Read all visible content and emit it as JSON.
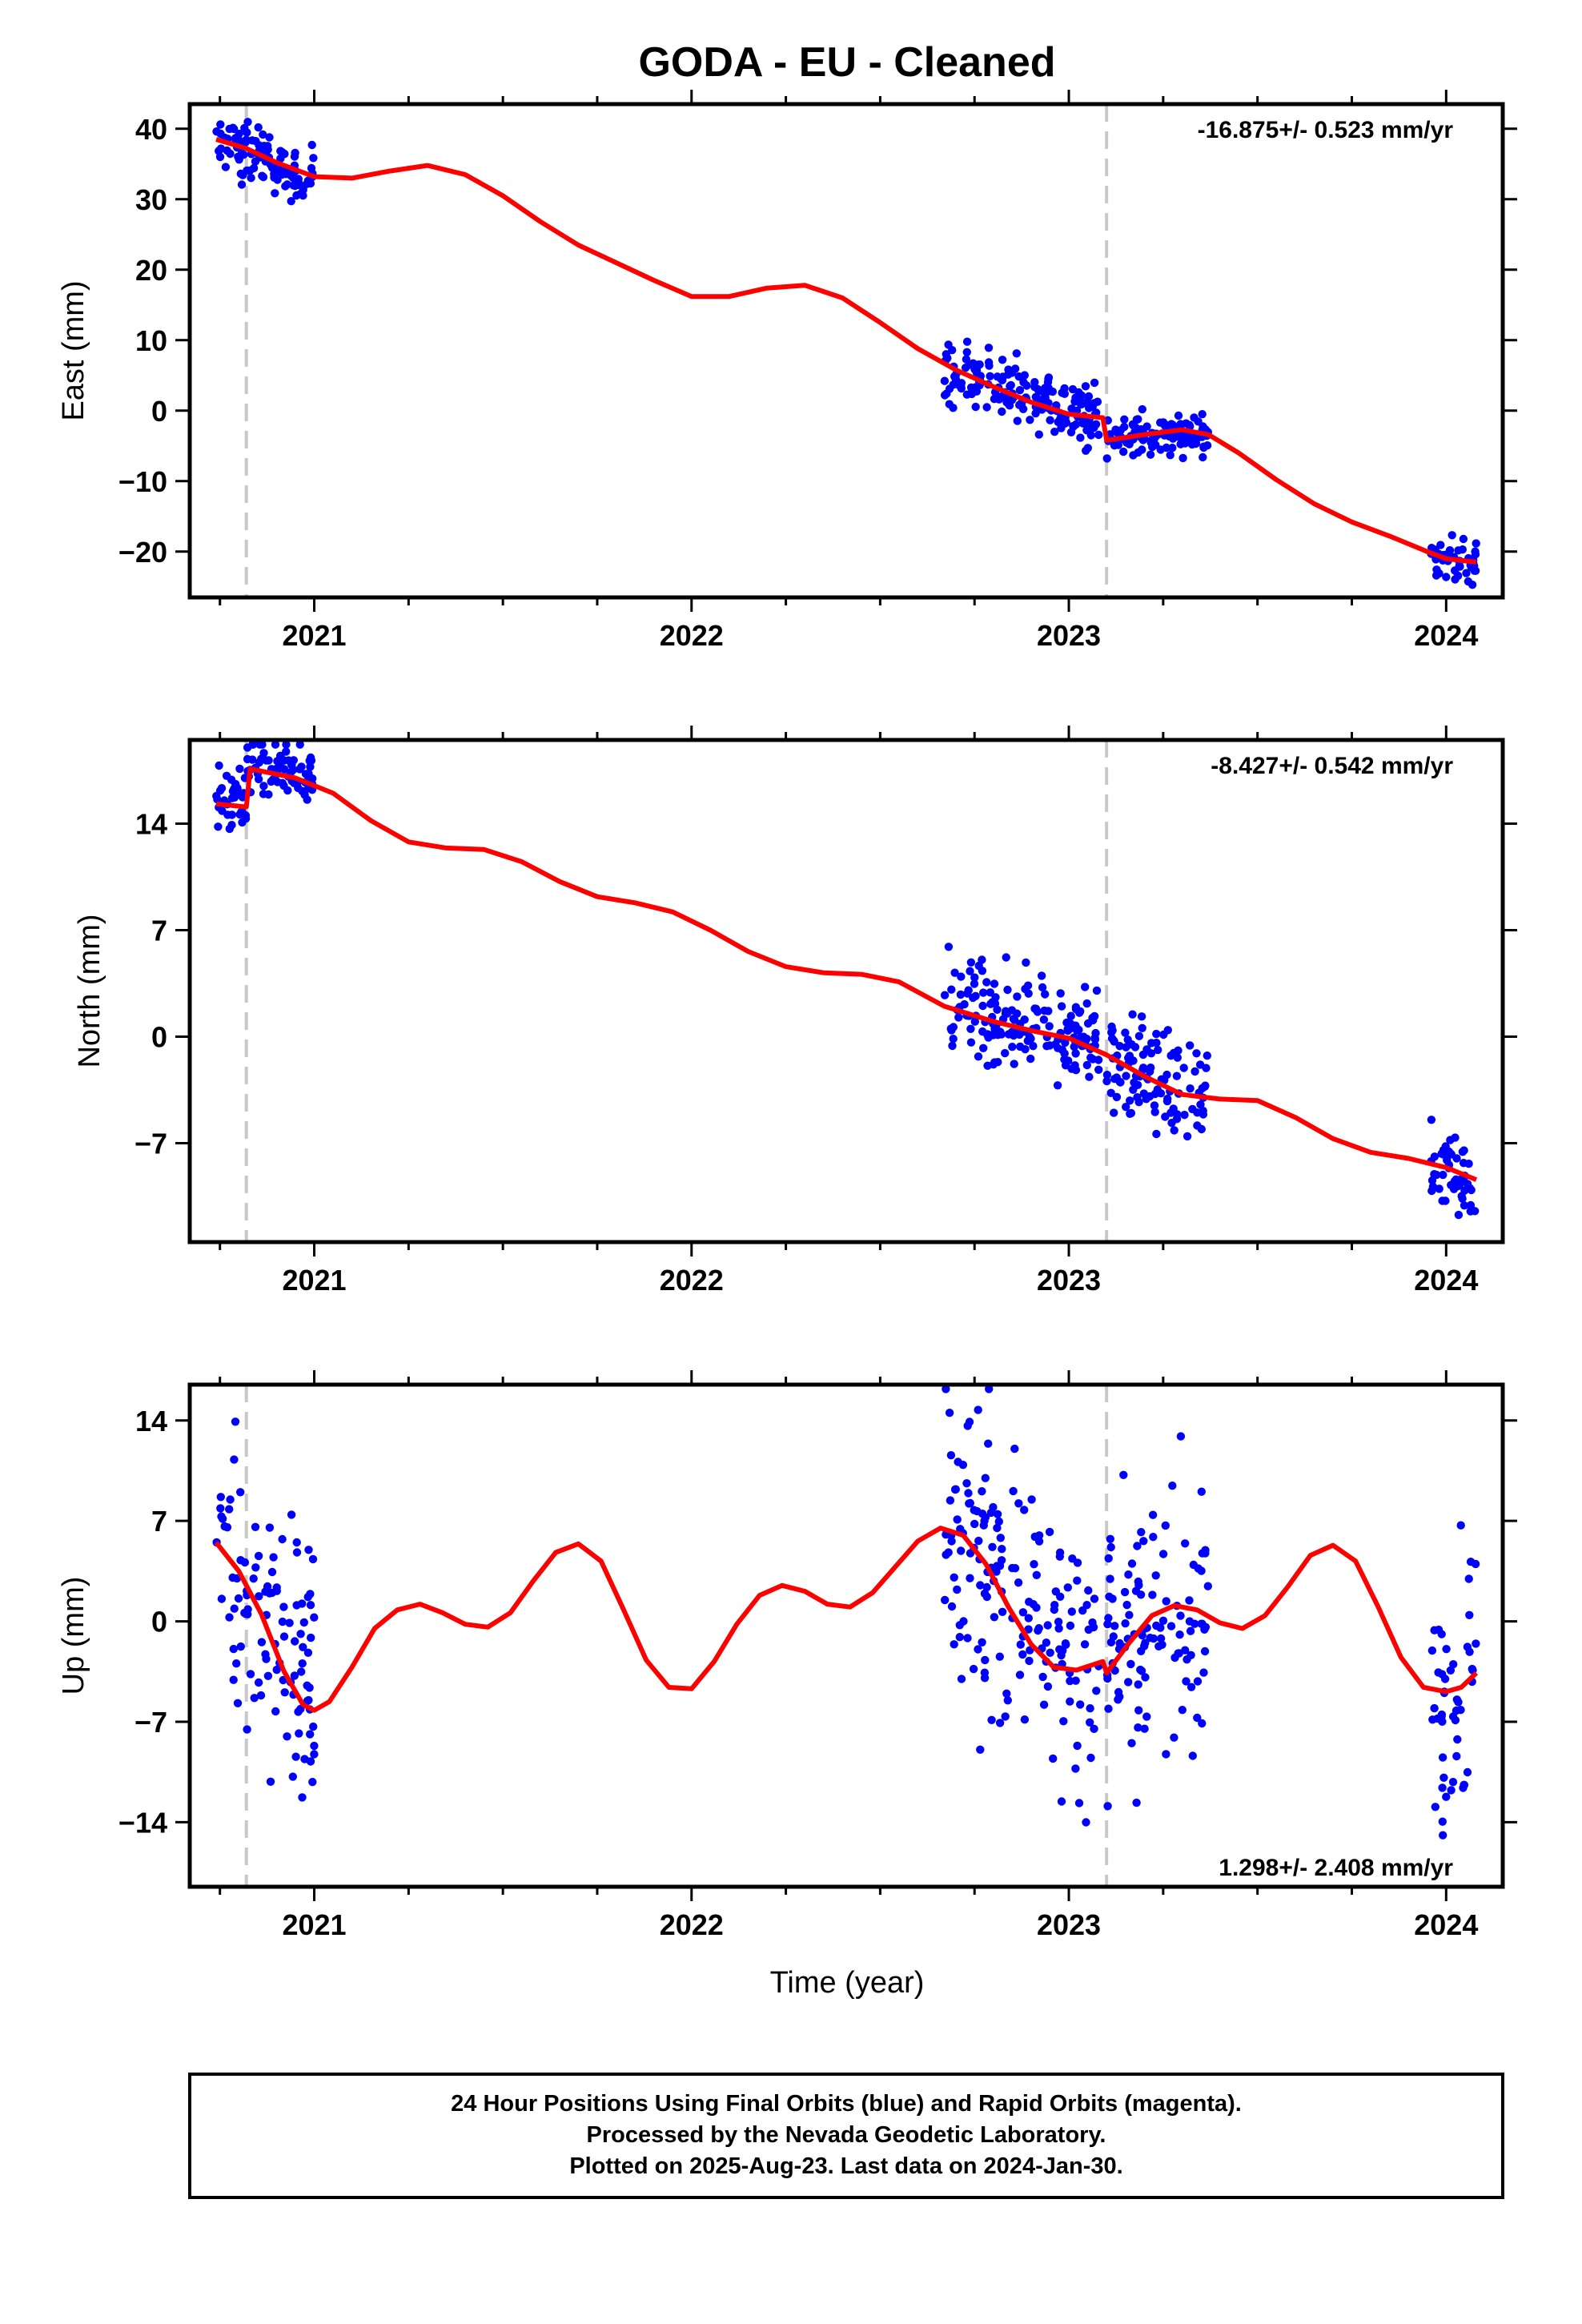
{
  "title": "GODA  - EU - Cleaned",
  "xlabel": "Time (year)",
  "footer": {
    "line1": "24 Hour Positions Using Final Orbits (blue) and Rapid Orbits (magenta).",
    "line2": "Processed by the Nevada Geodetic Laboratory.",
    "line3": "Plotted on 2025-Aug-23. Last data on 2024-Jan-30."
  },
  "colors": {
    "data": "#0000ff",
    "model": "#ff0000",
    "break_line": "#c8c8c8",
    "frame": "#000000"
  },
  "chart_data": [
    {
      "type": "scatter",
      "panel": "east",
      "ylabel": "East (mm)",
      "rate_text": "-16.875+/- 0.523 mm/yr",
      "xlim": [
        2020.67,
        2024.15
      ],
      "ylim": [
        -26.5,
        43.5
      ],
      "yticks": [
        40,
        30,
        20,
        10,
        0,
        -10,
        -20
      ],
      "xticks": [
        2021,
        2022,
        2023,
        2024
      ],
      "breaks": [
        2020.82,
        2023.1
      ],
      "data_clusters": [
        {
          "x_range": [
            2020.74,
            2021.0
          ],
          "y_center": [
            38,
            33
          ],
          "spread": 2.0
        },
        {
          "x_range": [
            2022.67,
            2023.08
          ],
          "y_center": [
            6,
            -1
          ],
          "spread": 2.3
        },
        {
          "x_range": [
            2023.1,
            2023.37
          ],
          "y_center": [
            -3.8,
            -3
          ],
          "spread": 1.4
        },
        {
          "x_range": [
            2023.96,
            2024.08
          ],
          "y_center": [
            -21,
            -21.5
          ],
          "spread": 1.6
        }
      ],
      "model_curve": [
        [
          2020.74,
          38.5
        ],
        [
          2020.82,
          37.2
        ],
        [
          2020.9,
          35.2
        ],
        [
          2021.0,
          33.2
        ],
        [
          2021.1,
          33.0
        ],
        [
          2021.2,
          34.0
        ],
        [
          2021.3,
          34.8
        ],
        [
          2021.4,
          33.5
        ],
        [
          2021.5,
          30.5
        ],
        [
          2021.6,
          26.8
        ],
        [
          2021.7,
          23.5
        ],
        [
          2021.8,
          21.0
        ],
        [
          2021.9,
          18.5
        ],
        [
          2022.0,
          16.2
        ],
        [
          2022.1,
          16.2
        ],
        [
          2022.2,
          17.4
        ],
        [
          2022.3,
          17.8
        ],
        [
          2022.4,
          16.0
        ],
        [
          2022.5,
          12.5
        ],
        [
          2022.6,
          8.8
        ],
        [
          2022.7,
          5.8
        ],
        [
          2022.8,
          3.4
        ],
        [
          2022.9,
          1.2
        ],
        [
          2023.0,
          -0.5
        ],
        [
          2023.09,
          -1.0
        ],
        [
          2023.1,
          -4.2
        ],
        [
          2023.2,
          -3.4
        ],
        [
          2023.3,
          -2.7
        ],
        [
          2023.37,
          -3.4
        ],
        [
          2023.45,
          -6.0
        ],
        [
          2023.55,
          -9.8
        ],
        [
          2023.65,
          -13.2
        ],
        [
          2023.75,
          -15.8
        ],
        [
          2023.85,
          -17.8
        ],
        [
          2023.95,
          -20.0
        ],
        [
          2024.0,
          -21.0
        ],
        [
          2024.08,
          -21.5
        ]
      ]
    },
    {
      "type": "scatter",
      "panel": "north",
      "ylabel": "North (mm)",
      "rate_text": "-8.427+/- 0.542 mm/yr",
      "xlim": [
        2020.67,
        2024.15
      ],
      "ylim": [
        -13.5,
        19.5
      ],
      "yticks": [
        14,
        7,
        0,
        -7
      ],
      "xticks": [
        2021,
        2022,
        2023,
        2024
      ],
      "breaks": [
        2020.82,
        2023.1
      ],
      "data_clusters": [
        {
          "x_range": [
            2020.74,
            2020.82
          ],
          "y_center": [
            15.5,
            15.5
          ],
          "spread": 1.1
        },
        {
          "x_range": [
            2020.82,
            2021.0
          ],
          "y_center": [
            17.5,
            17.0
          ],
          "spread": 1.0
        },
        {
          "x_range": [
            2022.67,
            2023.08
          ],
          "y_center": [
            2,
            0
          ],
          "spread": 1.6
        },
        {
          "x_range": [
            2023.1,
            2023.37
          ],
          "y_center": [
            -1.5,
            -3.8
          ],
          "spread": 1.6
        },
        {
          "x_range": [
            2023.96,
            2024.08
          ],
          "y_center": [
            -8,
            -9.5
          ],
          "spread": 1.4
        }
      ],
      "model_curve": [
        [
          2020.74,
          15.3
        ],
        [
          2020.82,
          15.1
        ],
        [
          2020.83,
          17.6
        ],
        [
          2020.95,
          17.0
        ],
        [
          2021.05,
          16.0
        ],
        [
          2021.15,
          14.2
        ],
        [
          2021.25,
          12.8
        ],
        [
          2021.35,
          12.4
        ],
        [
          2021.45,
          12.3
        ],
        [
          2021.55,
          11.5
        ],
        [
          2021.65,
          10.2
        ],
        [
          2021.75,
          9.2
        ],
        [
          2021.85,
          8.8
        ],
        [
          2021.95,
          8.2
        ],
        [
          2022.05,
          7.0
        ],
        [
          2022.15,
          5.6
        ],
        [
          2022.25,
          4.6
        ],
        [
          2022.35,
          4.2
        ],
        [
          2022.45,
          4.1
        ],
        [
          2022.55,
          3.6
        ],
        [
          2022.67,
          2.0
        ],
        [
          2022.8,
          1.0
        ],
        [
          2022.9,
          0.4
        ],
        [
          2023.0,
          -0.1
        ],
        [
          2023.1,
          -1.2
        ],
        [
          2023.2,
          -2.6
        ],
        [
          2023.3,
          -3.8
        ],
        [
          2023.4,
          -4.1
        ],
        [
          2023.5,
          -4.2
        ],
        [
          2023.6,
          -5.3
        ],
        [
          2023.7,
          -6.7
        ],
        [
          2023.8,
          -7.6
        ],
        [
          2023.9,
          -8.0
        ],
        [
          2024.0,
          -8.6
        ],
        [
          2024.08,
          -9.4
        ]
      ]
    },
    {
      "type": "scatter",
      "panel": "up",
      "ylabel": "Up (mm)",
      "rate_text": "1.298+/- 2.408 mm/yr",
      "xlim": [
        2020.67,
        2024.15
      ],
      "ylim": [
        -18.5,
        16.5
      ],
      "yticks": [
        14,
        7,
        0,
        -7,
        -14
      ],
      "xticks": [
        2021,
        2022,
        2023,
        2024
      ],
      "breaks": [
        2020.82,
        2023.1
      ],
      "data_clusters": [
        {
          "x_range": [
            2020.74,
            2021.0
          ],
          "y_center": [
            5,
            -4
          ],
          "spread": 5.5
        },
        {
          "x_range": [
            2022.67,
            2023.08
          ],
          "y_center": [
            7,
            -5
          ],
          "spread": 5.0
        },
        {
          "x_range": [
            2023.1,
            2023.37
          ],
          "y_center": [
            -2,
            1
          ],
          "spread": 4.6
        },
        {
          "x_range": [
            2023.96,
            2024.08
          ],
          "y_center": [
            -5,
            -3
          ],
          "spread": 4.3
        }
      ],
      "model_curve": [
        [
          2020.74,
          5.5
        ],
        [
          2020.8,
          3.5
        ],
        [
          2020.86,
          0.5
        ],
        [
          2020.92,
          -3.5
        ],
        [
          2020.97,
          -5.8
        ],
        [
          2021.0,
          -6.2
        ],
        [
          2021.04,
          -5.6
        ],
        [
          2021.1,
          -3.2
        ],
        [
          2021.16,
          -0.5
        ],
        [
          2021.22,
          0.8
        ],
        [
          2021.28,
          1.2
        ],
        [
          2021.34,
          0.6
        ],
        [
          2021.4,
          -0.2
        ],
        [
          2021.46,
          -0.4
        ],
        [
          2021.52,
          0.6
        ],
        [
          2021.58,
          2.8
        ],
        [
          2021.64,
          4.8
        ],
        [
          2021.7,
          5.4
        ],
        [
          2021.76,
          4.2
        ],
        [
          2021.82,
          0.8
        ],
        [
          2021.88,
          -2.7
        ],
        [
          2021.94,
          -4.6
        ],
        [
          2022.0,
          -4.7
        ],
        [
          2022.06,
          -2.8
        ],
        [
          2022.12,
          -0.2
        ],
        [
          2022.18,
          1.8
        ],
        [
          2022.24,
          2.5
        ],
        [
          2022.3,
          2.1
        ],
        [
          2022.36,
          1.2
        ],
        [
          2022.42,
          1.0
        ],
        [
          2022.48,
          2.0
        ],
        [
          2022.54,
          3.8
        ],
        [
          2022.6,
          5.6
        ],
        [
          2022.66,
          6.5
        ],
        [
          2022.72,
          6.0
        ],
        [
          2022.78,
          4.0
        ],
        [
          2022.84,
          1.0
        ],
        [
          2022.9,
          -1.6
        ],
        [
          2022.96,
          -3.2
        ],
        [
          2023.02,
          -3.4
        ],
        [
          2023.09,
          -2.8
        ],
        [
          2023.1,
          -3.6
        ],
        [
          2023.16,
          -1.5
        ],
        [
          2023.22,
          0.4
        ],
        [
          2023.28,
          1.1
        ],
        [
          2023.34,
          0.8
        ],
        [
          2023.4,
          -0.1
        ],
        [
          2023.46,
          -0.5
        ],
        [
          2023.52,
          0.4
        ],
        [
          2023.58,
          2.4
        ],
        [
          2023.64,
          4.6
        ],
        [
          2023.7,
          5.3
        ],
        [
          2023.76,
          4.2
        ],
        [
          2023.82,
          1.0
        ],
        [
          2023.88,
          -2.5
        ],
        [
          2023.94,
          -4.6
        ],
        [
          2024.0,
          -4.9
        ],
        [
          2024.04,
          -4.6
        ],
        [
          2024.08,
          -3.6
        ]
      ]
    }
  ]
}
